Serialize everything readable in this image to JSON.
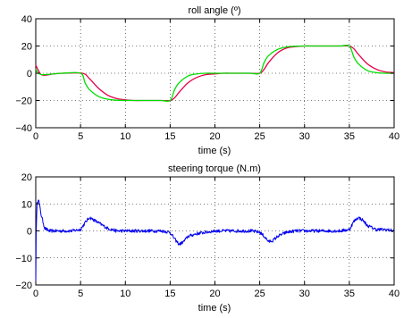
{
  "chart_data": [
    {
      "type": "line",
      "title": "roll angle (º)",
      "xlabel": "time (s)",
      "ylabel": "",
      "xlim": [
        0,
        40
      ],
      "ylim": [
        -40,
        40
      ],
      "xticks": [
        0,
        5,
        10,
        15,
        20,
        25,
        30,
        35,
        40
      ],
      "yticks": [
        -40,
        -20,
        0,
        20,
        40
      ],
      "grid": true,
      "series": [
        {
          "color": "#e5004b",
          "x": [
            0,
            0.3,
            0.6,
            1,
            2,
            3,
            5.2,
            6,
            7,
            8,
            9,
            10,
            11,
            12,
            13,
            14,
            15,
            15.5,
            16,
            17,
            18,
            19,
            20,
            21,
            22,
            23,
            24,
            25,
            25.5,
            26,
            27,
            28,
            29,
            30,
            31,
            32,
            33,
            34,
            35,
            35.5,
            36,
            37,
            38,
            39,
            40
          ],
          "y": [
            6,
            2,
            -1,
            -1.5,
            -0.5,
            0,
            0,
            -4,
            -11,
            -16,
            -18.5,
            -19.5,
            -20,
            -20,
            -20,
            -20,
            -20,
            -18,
            -14,
            -7,
            -3,
            -1,
            -0.5,
            0,
            0,
            0,
            0,
            0,
            3,
            8,
            15,
            18.5,
            19.5,
            20,
            20,
            20,
            20,
            20,
            20,
            18,
            14,
            7,
            3,
            1,
            0.5
          ]
        },
        {
          "color": "#00dd00",
          "x": [
            0,
            0.3,
            0.6,
            1,
            2,
            3,
            5,
            5.5,
            6,
            7,
            8,
            9,
            10,
            11,
            12,
            13,
            14,
            15,
            15.5,
            16,
            17,
            18,
            19,
            20,
            21,
            22,
            23,
            24,
            25,
            25.5,
            26,
            27,
            28,
            29,
            30,
            31,
            32,
            33,
            34,
            35,
            35.5,
            36,
            37,
            38,
            39,
            40
          ],
          "y": [
            3,
            0,
            -1,
            -1,
            -0.5,
            0,
            0,
            -7,
            -12,
            -17,
            -19,
            -19.8,
            -20,
            -20,
            -20,
            -20,
            -20,
            -20,
            -12,
            -7,
            -2,
            -0.5,
            0,
            0,
            0,
            0,
            0,
            0,
            0,
            8,
            13,
            17.5,
            19.3,
            19.8,
            20,
            20,
            20,
            20,
            20,
            20,
            12,
            7,
            2,
            0.5,
            0,
            0
          ]
        }
      ]
    },
    {
      "type": "line",
      "title": "steering torque (N.m)",
      "xlabel": "time (s)",
      "ylabel": "",
      "xlim": [
        0,
        40
      ],
      "ylim": [
        -20,
        20
      ],
      "xticks": [
        0,
        5,
        10,
        15,
        20,
        25,
        30,
        35,
        40
      ],
      "yticks": [
        -20,
        -10,
        0,
        10,
        20
      ],
      "grid": true,
      "series": [
        {
          "color": "#0000ee",
          "noise": 0.6,
          "x": [
            0,
            0.05,
            0.15,
            0.3,
            0.6,
            1,
            1.5,
            2,
            3,
            4,
            5,
            5.5,
            6,
            7,
            8,
            9,
            10,
            11,
            12,
            13,
            14,
            15,
            15.5,
            16,
            16.5,
            17,
            18,
            19,
            20,
            21,
            22,
            23,
            24,
            25,
            25.5,
            26,
            26.5,
            27,
            28,
            29,
            30,
            31,
            32,
            33,
            34,
            35,
            35.5,
            36,
            36.5,
            37,
            38,
            39,
            40
          ],
          "y": [
            -20,
            0,
            10,
            12,
            6,
            1,
            0,
            0,
            0,
            0,
            0.5,
            3,
            5,
            3,
            1,
            0,
            0,
            0,
            0,
            0,
            0,
            -0.5,
            -3,
            -5,
            -4,
            -2,
            -1,
            -0.5,
            0,
            0,
            0,
            0,
            0,
            -0.5,
            -2,
            -4,
            -3.5,
            -2,
            -0.5,
            0,
            0,
            0,
            0,
            0,
            0,
            0.5,
            3.5,
            5,
            4,
            2,
            0.5,
            0.5,
            0
          ]
        }
      ]
    }
  ]
}
